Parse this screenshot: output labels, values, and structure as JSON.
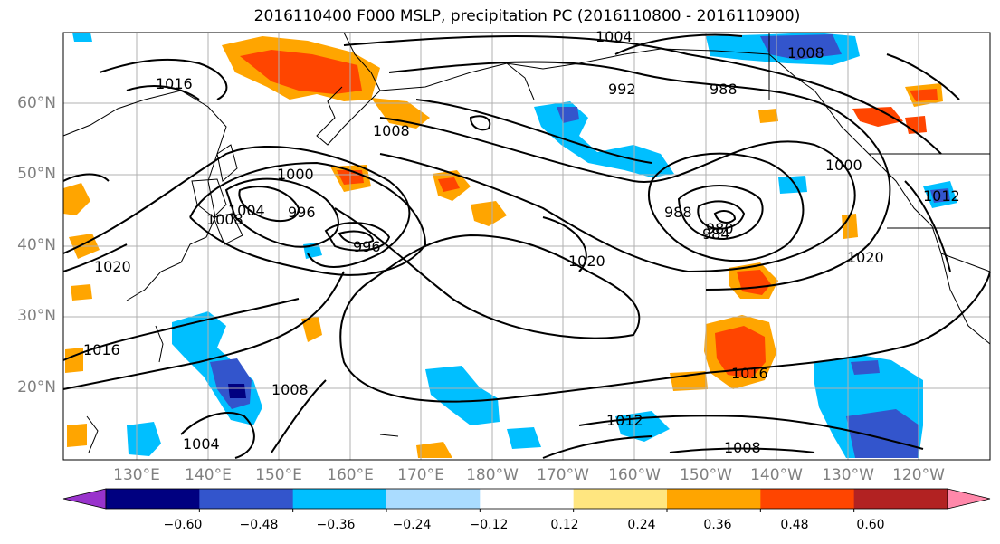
{
  "title": "2016110400 F000 MSLP, precipitation PC (2016110800 - 2016110900)",
  "lat_labels": [
    "60°N",
    "50°N",
    "40°N",
    "30°N",
    "20°N"
  ],
  "lon_labels": [
    "130°E",
    "140°E",
    "150°E",
    "160°E",
    "170°E",
    "180°W",
    "170°W",
    "160°W",
    "150°W",
    "140°W",
    "130°W",
    "120°W"
  ],
  "isobar_labels": [
    "1016",
    "1004",
    "992",
    "988",
    "1008",
    "1008",
    "1000",
    "1004",
    "996",
    "996",
    "1008",
    "988",
    "980",
    "984",
    "1000",
    "1012",
    "1020",
    "1020",
    "1020",
    "1016",
    "1016",
    "1008",
    "1012",
    "1004",
    "1008"
  ],
  "colorbar": {
    "ticks": [
      "−0.60",
      "−0.48",
      "−0.36",
      "−0.24",
      "−0.12",
      "0.12",
      "0.24",
      "0.36",
      "0.48",
      "0.60"
    ],
    "colors": [
      "#9933cc",
      "#000080",
      "#3355cc",
      "#00bfff",
      "#aadcff",
      "#ffffff",
      "#ffe680",
      "#ffa500",
      "#ff4500",
      "#b22222",
      "#ff88aa"
    ]
  },
  "colors": {
    "positive_weak": "#ffe680",
    "positive_mid": "#ffa500",
    "positive_strong": "#ff4500",
    "negative_weak": "#aadcff",
    "negative_mid": "#00bfff",
    "negative_strong": "#3355cc",
    "negative_max": "#000080"
  }
}
